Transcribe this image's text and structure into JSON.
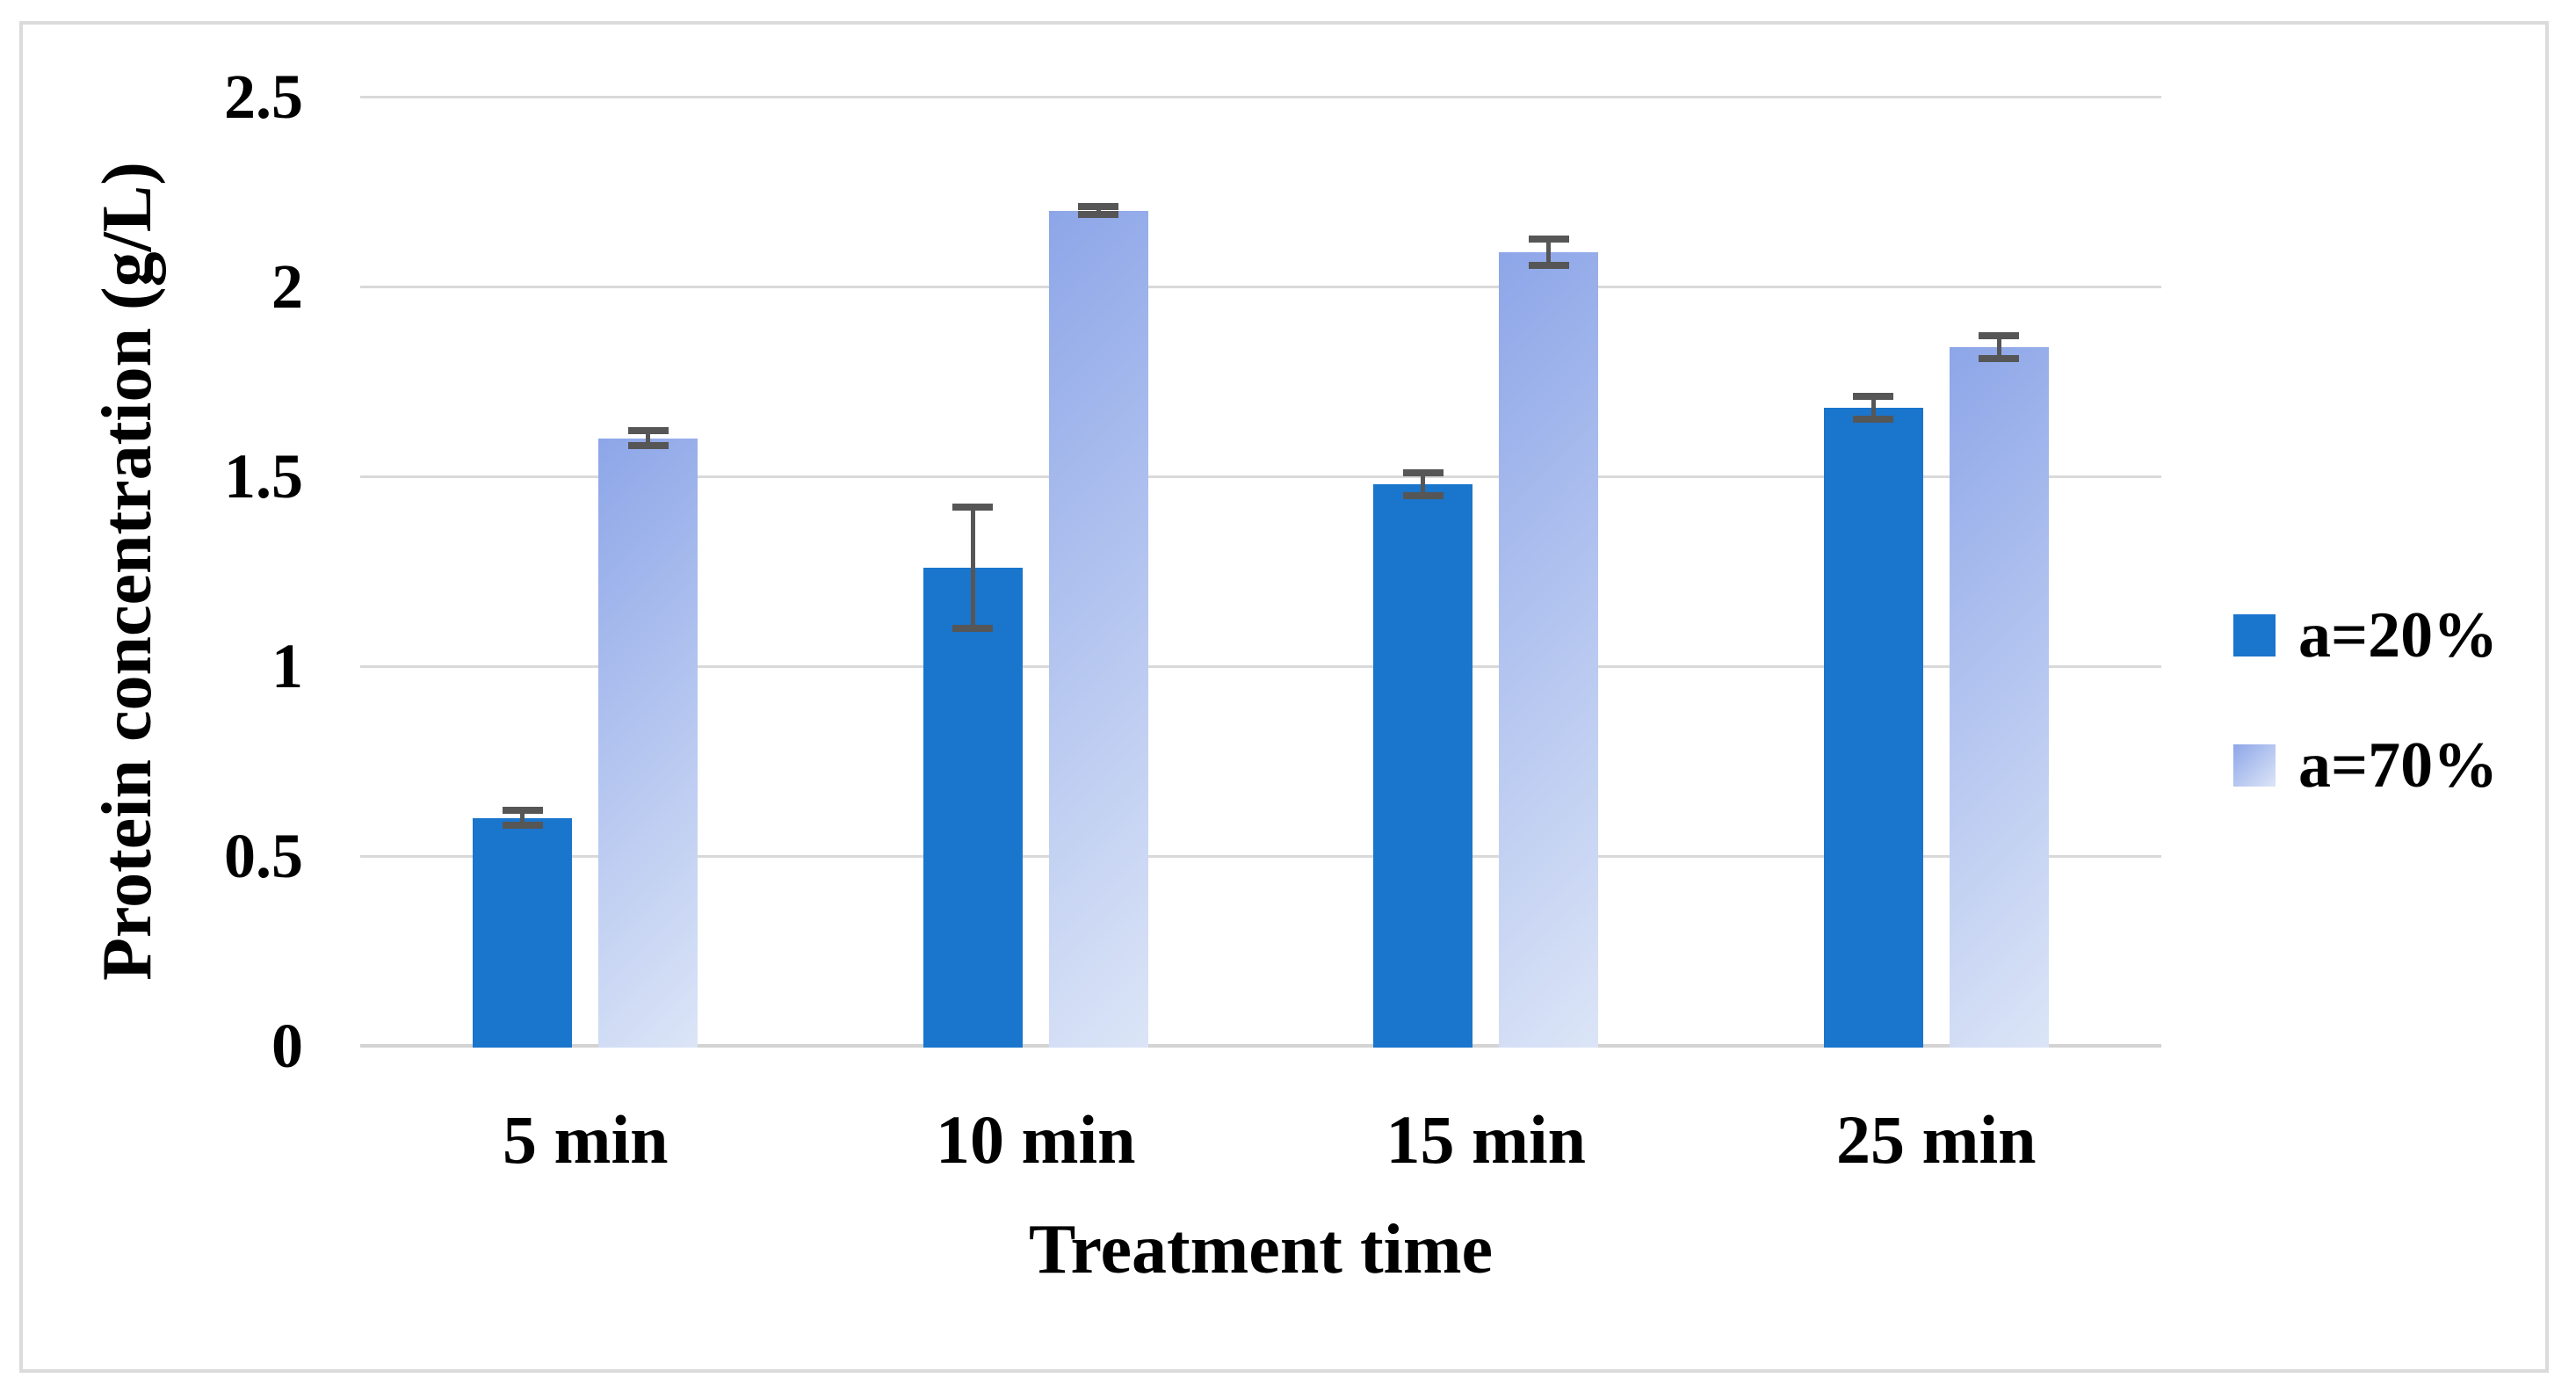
{
  "figure": {
    "background": "#FFFFFF",
    "border_color": "#DBDBDB"
  },
  "chart_data": {
    "type": "bar",
    "title": "",
    "categories": [
      "5 min",
      "10 min",
      "15 min",
      "25 min"
    ],
    "series": [
      {
        "name": "a=20%",
        "style": "solid",
        "color": "#1A75CD",
        "values": [
          0.6,
          1.26,
          1.48,
          1.68
        ],
        "errors": [
          0.02,
          0.16,
          0.03,
          0.03
        ]
      },
      {
        "name": "a=70%",
        "style": "gradient",
        "gradient_from": "#8DA6E8",
        "gradient_to": "#DCE5F7",
        "values": [
          1.6,
          2.2,
          2.09,
          1.84
        ],
        "errors": [
          0.02,
          0.01,
          0.035,
          0.03
        ]
      }
    ],
    "xlabel": "Treatment time",
    "ylabel": "Protein concentration (g/L)",
    "ylim": [
      0,
      2.5
    ],
    "yticks": [
      0,
      0.5,
      1,
      1.5,
      2,
      2.5
    ],
    "ytick_labels": [
      "0",
      "0.5",
      "1",
      "1.5",
      "2",
      "2.5"
    ],
    "grid": "horizontal",
    "gridline_color": "#D9D9D9",
    "axis_line_color": "#D3D3D3",
    "error_bar_color": "#565656",
    "legend_position": "right"
  }
}
